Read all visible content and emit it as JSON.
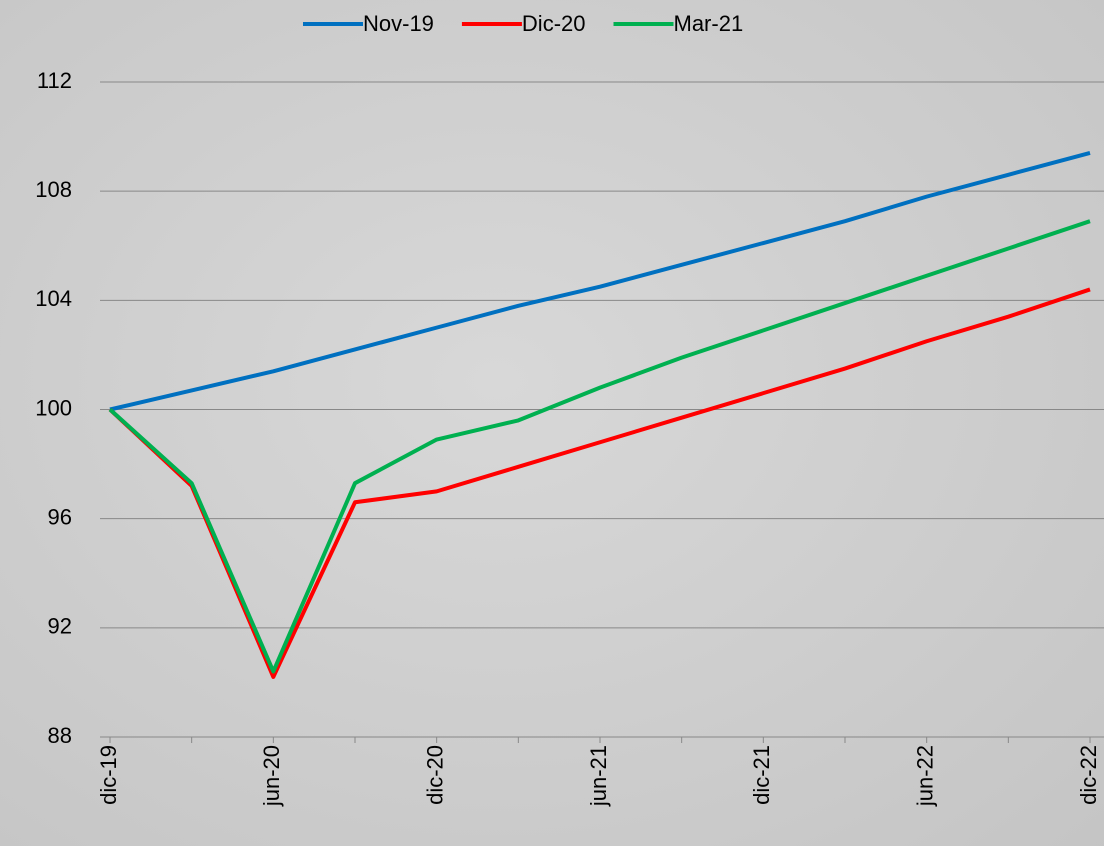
{
  "chart_data": {
    "type": "line",
    "categories": [
      "dic-19",
      null,
      "jun-20",
      null,
      "dic-20",
      null,
      "jun-21",
      null,
      "dic-21",
      null,
      "jun-22",
      null,
      "dic-22"
    ],
    "series": [
      {
        "name": "Nov-19",
        "color": "#0070c0",
        "values": [
          100,
          100.7,
          101.4,
          102.2,
          103.0,
          103.8,
          104.5,
          105.3,
          106.1,
          106.9,
          107.8,
          108.6,
          109.4
        ]
      },
      {
        "name": "Dic-20",
        "color": "#ff0000",
        "values": [
          100,
          97.2,
          90.2,
          96.6,
          97.0,
          97.9,
          98.8,
          99.7,
          100.6,
          101.5,
          102.5,
          103.4,
          104.4
        ]
      },
      {
        "name": "Mar-21",
        "color": "#00b050",
        "values": [
          100,
          97.3,
          90.4,
          97.3,
          98.9,
          99.6,
          100.8,
          101.9,
          102.9,
          103.9,
          104.9,
          105.9,
          106.9
        ]
      }
    ],
    "ylim": [
      88,
      112
    ],
    "yticks": [
      88,
      92,
      96,
      100,
      104,
      108,
      112
    ],
    "grid": true,
    "legend": "top"
  }
}
